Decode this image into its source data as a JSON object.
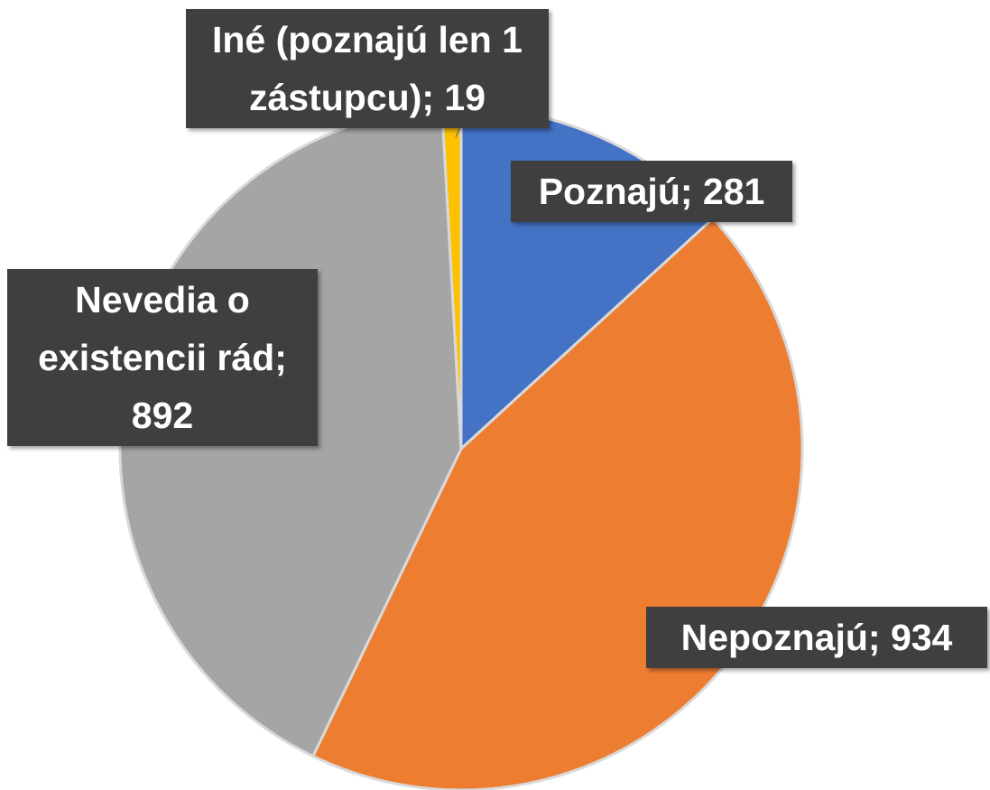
{
  "chart_data": {
    "type": "pie",
    "categories": [
      "Poznajú",
      "Nepoznajú",
      "Nevedia o existencii rád",
      "Iné (poznajú len 1 zástupcu)"
    ],
    "values": [
      281,
      934,
      892,
      19
    ],
    "value_labels": [
      "Poznajú; 281",
      "Nepoznajú; 934",
      "Nevedia o existencii rád; 892",
      "Iné (poznajú len 1 zástupcu); 19"
    ],
    "colors": [
      "#4472c4",
      "#ed7d31",
      "#a5a5a5",
      "#ffc000"
    ]
  }
}
